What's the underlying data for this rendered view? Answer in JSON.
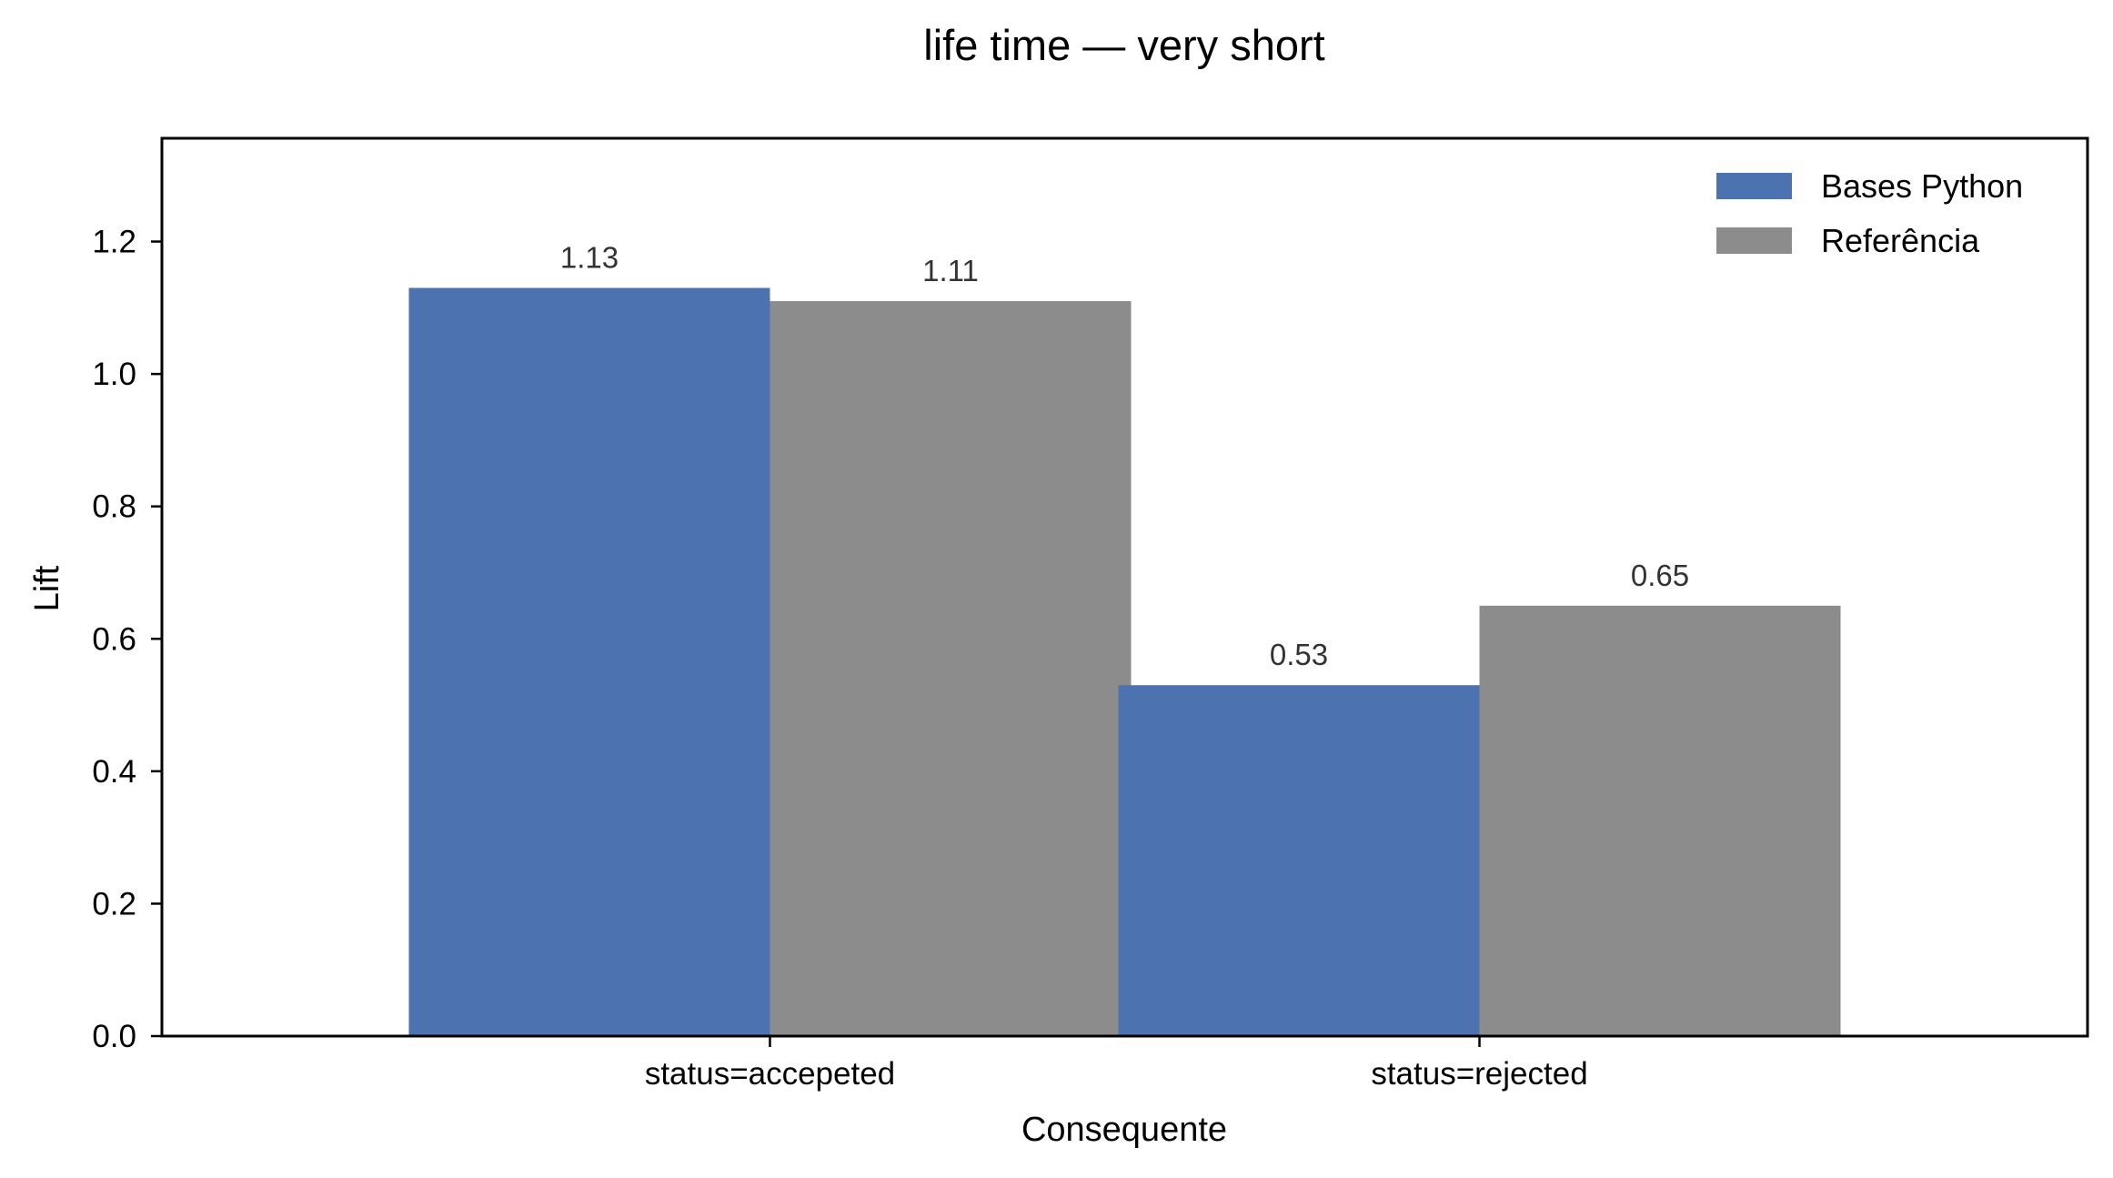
{
  "chart_data": {
    "type": "bar",
    "title": "life time — very short",
    "xlabel": "Consequente",
    "ylabel": "Lift",
    "categories": [
      "status=accepeted",
      "status=rejected"
    ],
    "series": [
      {
        "name": "Bases Python",
        "values": [
          1.13,
          0.53
        ],
        "labels": [
          "1.13",
          "0.53"
        ],
        "color": "#4c72b0"
      },
      {
        "name": "Referência",
        "values": [
          1.11,
          0.65
        ],
        "labels": [
          "1.11",
          "0.65"
        ],
        "color": "#8c8c8c"
      }
    ],
    "ylim": [
      0,
      1.356
    ],
    "yticks": [
      0.0,
      0.2,
      0.4,
      0.6,
      0.8,
      1.0,
      1.2
    ],
    "ytick_labels": [
      "0.0",
      "0.2",
      "0.4",
      "0.6",
      "0.8",
      "1.0",
      "1.2"
    ],
    "grid": false,
    "legend_position": "top-right"
  }
}
